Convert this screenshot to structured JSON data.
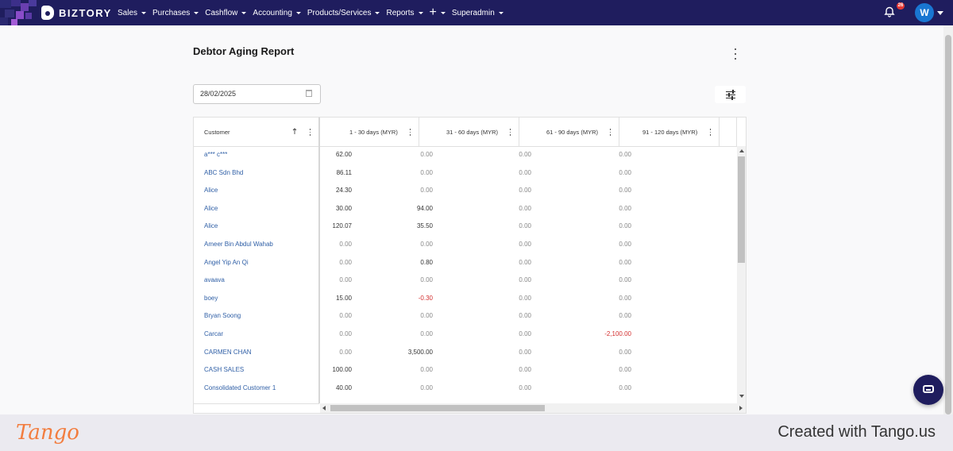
{
  "nav": {
    "brand": "BIZTORY",
    "menu": [
      "Sales",
      "Purchases",
      "Cashflow",
      "Accounting",
      "Products/Services",
      "Reports",
      "+",
      "Superadmin"
    ],
    "notifications": "26",
    "avatar": "W"
  },
  "page": {
    "title": "Debtor Aging Report",
    "date": "28/02/2025"
  },
  "grid": {
    "columns": [
      "Customer",
      "1 - 30 days (MYR)",
      "31 - 60 days (MYR)",
      "61 - 90 days (MYR)",
      "91 - 120 days (MYR)"
    ],
    "rows": [
      {
        "customer": "a*** c***",
        "d30": "62.00",
        "d60": "0.00",
        "d90": "0.00",
        "d120": "0.00"
      },
      {
        "customer": "ABC Sdn Bhd",
        "d30": "86.11",
        "d60": "0.00",
        "d90": "0.00",
        "d120": "0.00"
      },
      {
        "customer": "Alice",
        "d30": "24.30",
        "d60": "0.00",
        "d90": "0.00",
        "d120": "0.00"
      },
      {
        "customer": "Alice",
        "d30": "30.00",
        "d60": "94.00",
        "d90": "0.00",
        "d120": "0.00"
      },
      {
        "customer": "Alice",
        "d30": "120.07",
        "d60": "35.50",
        "d90": "0.00",
        "d120": "0.00"
      },
      {
        "customer": "Ameer Bin Abdul Wahab",
        "d30": "0.00",
        "d60": "0.00",
        "d90": "0.00",
        "d120": "0.00"
      },
      {
        "customer": "Angel Yip An Qi",
        "d30": "0.00",
        "d60": "0.80",
        "d90": "0.00",
        "d120": "0.00"
      },
      {
        "customer": "avaava",
        "d30": "0.00",
        "d60": "0.00",
        "d90": "0.00",
        "d120": "0.00"
      },
      {
        "customer": "boey",
        "d30": "15.00",
        "d60": "-0.30",
        "d90": "0.00",
        "d120": "0.00"
      },
      {
        "customer": "Bryan Soong",
        "d30": "0.00",
        "d60": "0.00",
        "d90": "0.00",
        "d120": "0.00"
      },
      {
        "customer": "Carcar",
        "d30": "0.00",
        "d60": "0.00",
        "d90": "0.00",
        "d120": "-2,100.00"
      },
      {
        "customer": "CARMEN CHAN",
        "d30": "0.00",
        "d60": "3,500.00",
        "d90": "0.00",
        "d120": "0.00"
      },
      {
        "customer": "CASH SALES",
        "d30": "100.00",
        "d60": "0.00",
        "d90": "0.00",
        "d120": "0.00"
      },
      {
        "customer": "Consolidated Customer 1",
        "d30": "40.00",
        "d60": "0.00",
        "d90": "0.00",
        "d120": "0.00"
      }
    ]
  },
  "footer": {
    "logo": "Tango",
    "text": "Created with Tango.us"
  },
  "colors": {
    "nav": "#1f1d5e",
    "link": "#2f5fa6",
    "negative": "#d32f2f",
    "tango": "#f27d3f"
  }
}
